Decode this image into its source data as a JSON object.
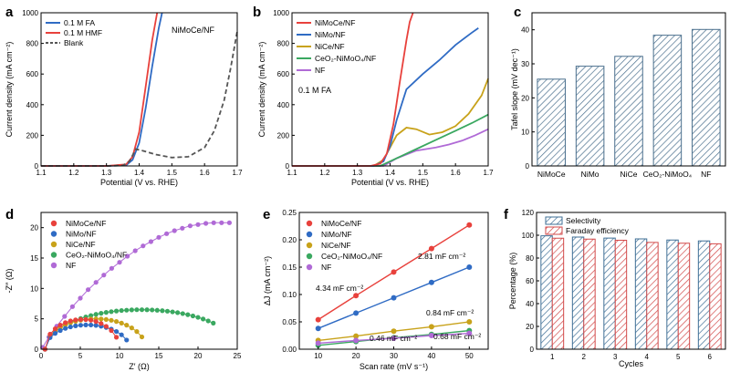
{
  "colors": {
    "red": "#e8413c",
    "blue": "#2f6bc4",
    "gold": "#c8a21a",
    "green": "#3aa860",
    "purple": "#b06ad6",
    "gray": "#555555",
    "hatch_blue": "#3f6f96",
    "hatch_red": "#d24a4a",
    "slate": "#4a6f8d"
  },
  "chart_data": [
    {
      "panel": "a",
      "type": "line",
      "annotation": "NiMoCe/NF",
      "xlabel": "Potential (V vs. RHE)",
      "ylabel": "Current density (mA cm⁻²)",
      "xlim": [
        1.1,
        1.7
      ],
      "ylim": [
        0,
        1000
      ],
      "xticks": [
        "1.1",
        "1.2",
        "1.3",
        "1.4",
        "1.5",
        "1.6",
        "1.7"
      ],
      "yticks": [
        "0",
        "200",
        "400",
        "600",
        "800",
        "1000"
      ],
      "series": [
        {
          "name": "0.1 M FA",
          "color": "blue",
          "x": [
            1.1,
            1.3,
            1.36,
            1.38,
            1.4,
            1.42,
            1.44,
            1.46,
            1.47
          ],
          "y": [
            0,
            0,
            5,
            40,
            150,
            380,
            650,
            900,
            1000
          ]
        },
        {
          "name": "0.1 M HMF",
          "color": "red",
          "x": [
            1.1,
            1.3,
            1.36,
            1.38,
            1.4,
            1.42,
            1.44,
            1.455
          ],
          "y": [
            0,
            0,
            10,
            60,
            220,
            520,
            820,
            1000
          ]
        },
        {
          "name": "Blank",
          "color": "gray",
          "dashed": true,
          "x": [
            1.1,
            1.3,
            1.35,
            1.37,
            1.39,
            1.41,
            1.45,
            1.5,
            1.55,
            1.6,
            1.63,
            1.66,
            1.68,
            1.7
          ],
          "y": [
            0,
            0,
            3,
            30,
            110,
            100,
            75,
            55,
            60,
            120,
            230,
            430,
            640,
            880
          ]
        }
      ]
    },
    {
      "panel": "b",
      "type": "line",
      "annotation": "0.1 M FA",
      "xlabel": "Potential (V vs. RHE)",
      "ylabel": "Current density (mA cm⁻²)",
      "xlim": [
        1.1,
        1.7
      ],
      "ylim": [
        0,
        1000
      ],
      "xticks": [
        "1.1",
        "1.2",
        "1.3",
        "1.4",
        "1.5",
        "1.6",
        "1.7"
      ],
      "yticks": [
        "0",
        "200",
        "400",
        "600",
        "800",
        "1000"
      ],
      "series": [
        {
          "name": "NiMoCe/NF",
          "color": "red",
          "x": [
            1.1,
            1.34,
            1.37,
            1.39,
            1.41,
            1.43,
            1.45,
            1.46,
            1.47
          ],
          "y": [
            0,
            0,
            15,
            80,
            270,
            550,
            820,
            940,
            1000
          ]
        },
        {
          "name": "NiMo/NF",
          "color": "blue",
          "x": [
            1.1,
            1.35,
            1.38,
            1.4,
            1.42,
            1.45,
            1.5,
            1.55,
            1.6,
            1.65,
            1.67
          ],
          "y": [
            0,
            0,
            30,
            130,
            300,
            500,
            600,
            690,
            790,
            870,
            900
          ]
        },
        {
          "name": "NiCe/NF",
          "color": "gold",
          "x": [
            1.1,
            1.35,
            1.38,
            1.42,
            1.45,
            1.48,
            1.52,
            1.56,
            1.6,
            1.64,
            1.68,
            1.7
          ],
          "y": [
            0,
            0,
            40,
            200,
            250,
            240,
            205,
            220,
            260,
            340,
            460,
            570
          ]
        },
        {
          "name": "CeO₂-NiMoO₄/NF",
          "color": "green",
          "x": [
            1.1,
            1.37,
            1.42,
            1.48,
            1.54,
            1.6,
            1.65,
            1.7
          ],
          "y": [
            0,
            0,
            50,
            110,
            170,
            230,
            280,
            335
          ]
        },
        {
          "name": "NF",
          "color": "purple",
          "x": [
            1.1,
            1.38,
            1.42,
            1.48,
            1.54,
            1.58,
            1.62,
            1.66,
            1.7
          ],
          "y": [
            0,
            0,
            50,
            100,
            120,
            140,
            165,
            200,
            240
          ]
        }
      ]
    },
    {
      "panel": "c",
      "type": "bar",
      "xlabel": "",
      "ylabel": "Tafel slope (mV dec⁻¹)",
      "categories": [
        "NiMoCe",
        "NiMo",
        "NiCe",
        "CeO₂-NiMoO₄",
        "NF"
      ],
      "values": [
        25.5,
        29.3,
        32.2,
        38.4,
        40.1
      ],
      "ylim": [
        0,
        45
      ],
      "yticks": [
        "0",
        "10",
        "20",
        "30",
        "40"
      ]
    },
    {
      "panel": "d",
      "type": "scatter",
      "xlabel": "Z′ (Ω)",
      "ylabel": "-Z″ (Ω)",
      "xlim": [
        0,
        25
      ],
      "ylim": [
        0,
        22.5
      ],
      "xticks": [
        "0",
        "5",
        "10",
        "15",
        "20",
        "25"
      ],
      "yticks": [
        "0",
        "5",
        "10",
        "15",
        "20"
      ],
      "series": [
        {
          "name": "NiMoCe/NF",
          "color": "red",
          "arc": {
            "start": 0.5,
            "end": 10.0,
            "height": 4.9
          }
        },
        {
          "name": "NiMo/NF",
          "color": "blue",
          "arc": {
            "start": 0.5,
            "end": 11.3,
            "height": 4.0
          }
        },
        {
          "name": "NiCe/NF",
          "color": "gold",
          "arc": {
            "start": 0.5,
            "end": 13.4,
            "height": 5.0
          }
        },
        {
          "name": "CeO₂-NiMoO₄/NF",
          "color": "green",
          "arc": {
            "start": 0.5,
            "end": 25.0,
            "height": 6.5,
            "stop": 22.0
          }
        },
        {
          "name": "NF",
          "color": "purple",
          "points": [
            [
              0.2,
              0.3
            ],
            [
              1,
              2
            ],
            [
              2,
              3.8
            ],
            [
              3,
              5.4
            ],
            [
              4,
              7
            ],
            [
              5,
              8.4
            ],
            [
              6,
              9.8
            ],
            [
              7,
              11
            ],
            [
              8,
              12.2
            ],
            [
              9,
              13.3
            ],
            [
              10,
              14.3
            ],
            [
              11,
              15.3
            ],
            [
              12,
              16.2
            ],
            [
              13,
              17
            ],
            [
              14,
              17.7
            ],
            [
              15,
              18.4
            ],
            [
              16,
              19
            ],
            [
              17,
              19.5
            ],
            [
              18,
              19.9
            ],
            [
              19,
              20.3
            ],
            [
              20,
              20.5
            ],
            [
              21,
              20.7
            ],
            [
              22,
              20.8
            ],
            [
              23,
              20.8
            ],
            [
              24,
              20.8
            ]
          ]
        }
      ]
    },
    {
      "panel": "e",
      "type": "scatter",
      "xlabel": "Scan rate (mV s⁻¹)",
      "ylabel": "ΔJ (mA cm⁻²)",
      "xlim": [
        5,
        55
      ],
      "ylim": [
        0,
        0.25
      ],
      "xticks": [
        "10",
        "20",
        "30",
        "40",
        "50"
      ],
      "yticks": [
        "0.00",
        "0.05",
        "0.10",
        "0.15",
        "0.20",
        "0.25"
      ],
      "x": [
        10,
        20,
        30,
        40,
        50
      ],
      "series": [
        {
          "name": "NiMoCe/NF",
          "color": "red",
          "values": [
            0.054,
            0.098,
            0.141,
            0.184,
            0.227
          ],
          "slope_label": "4.34 mF cm⁻²"
        },
        {
          "name": "NiMo/NF",
          "color": "blue",
          "values": [
            0.038,
            0.066,
            0.094,
            0.122,
            0.15
          ],
          "slope_label": "2.81 mF cm⁻²"
        },
        {
          "name": "NiCe/NF",
          "color": "gold",
          "values": [
            0.016,
            0.024,
            0.033,
            0.041,
            0.05
          ],
          "slope_label": "0.84 mF cm⁻²"
        },
        {
          "name": "CeO₂-NiMoO₄/NF",
          "color": "green",
          "values": [
            0.007,
            0.014,
            0.021,
            0.027,
            0.034
          ],
          "slope_label": "0.68 mF cm⁻²"
        },
        {
          "name": "NF",
          "color": "purple",
          "values": [
            0.011,
            0.016,
            0.02,
            0.025,
            0.029
          ],
          "slope_label": "0.46 mF cm⁻²"
        }
      ]
    },
    {
      "panel": "f",
      "type": "bar",
      "xlabel": "Cycles",
      "ylabel": "Percentage (%)",
      "categories": [
        "1",
        "2",
        "3",
        "4",
        "5",
        "6"
      ],
      "ylim": [
        0,
        120
      ],
      "yticks": [
        "0",
        "20",
        "40",
        "60",
        "80",
        "100",
        "120"
      ],
      "series": [
        {
          "name": "Selectivity",
          "color": "hatch_blue",
          "values": [
            99.5,
            98.4,
            97.5,
            96.8,
            95.8,
            95.0
          ]
        },
        {
          "name": "Faraday efficiency",
          "color": "hatch_red",
          "values": [
            97.4,
            96.6,
            95.6,
            93.7,
            93.0,
            92.5
          ]
        }
      ]
    }
  ]
}
